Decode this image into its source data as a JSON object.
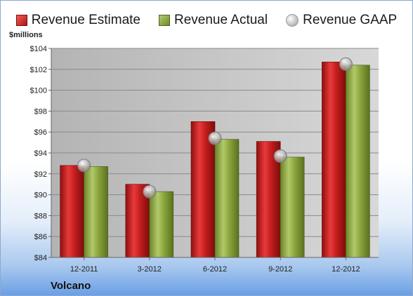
{
  "legend": {
    "estimate": "Revenue Estimate",
    "actual": "Revenue Actual",
    "gaap": "Revenue GAAP"
  },
  "ylabel": "$millions",
  "company": "Volcano",
  "colors": {
    "estimate": "#c41e1e",
    "actual": "#8aa63c",
    "gaap": "#b0b0b0",
    "plot_bg": "#c8c8c8"
  },
  "chart_data": {
    "type": "bar",
    "categories": [
      "12-2011",
      "3-2012",
      "6-2012",
      "9-2012",
      "12-2012"
    ],
    "series": [
      {
        "name": "Revenue Estimate",
        "values": [
          92.8,
          91.0,
          97.0,
          95.1,
          102.7
        ]
      },
      {
        "name": "Revenue Actual",
        "values": [
          92.7,
          90.3,
          95.3,
          93.6,
          102.4
        ]
      },
      {
        "name": "Revenue GAAP",
        "values": [
          92.8,
          90.3,
          95.4,
          93.7,
          102.5
        ]
      }
    ],
    "ylim": [
      84,
      104
    ],
    "yticks": [
      84,
      86,
      88,
      90,
      92,
      94,
      96,
      98,
      100,
      102,
      104
    ],
    "ytick_labels": [
      "$84",
      "$86",
      "$88",
      "$90",
      "$92",
      "$94",
      "$96",
      "$98",
      "$100",
      "$102",
      "$104"
    ],
    "ylabel": "$millions",
    "grid": true,
    "legend_position": "top"
  }
}
